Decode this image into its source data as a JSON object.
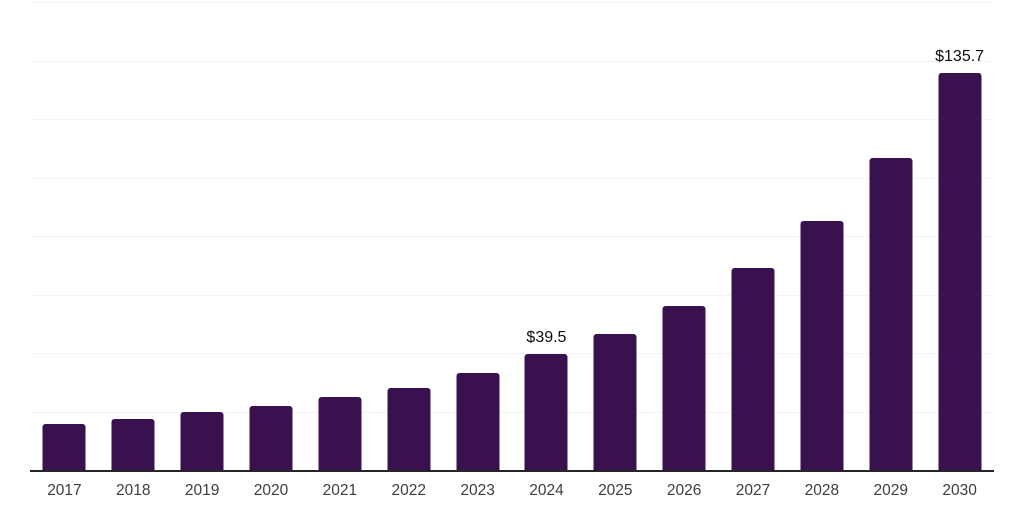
{
  "chart_data": {
    "type": "bar",
    "title": "",
    "xlabel": "",
    "ylabel": "",
    "categories": [
      "2017",
      "2018",
      "2019",
      "2020",
      "2021",
      "2022",
      "2023",
      "2024",
      "2025",
      "2026",
      "2027",
      "2028",
      "2029",
      "2030"
    ],
    "values": [
      15.9,
      17.5,
      19.8,
      21.9,
      24.9,
      28.2,
      33.1,
      39.5,
      46.6,
      56.2,
      69.0,
      85.3,
      106.7,
      135.7
    ],
    "annotations": [
      {
        "category": "2024",
        "text": "$39.5"
      },
      {
        "category": "2030",
        "text": "$135.7"
      }
    ],
    "ylim": [
      0,
      160
    ],
    "gridline_count": 8,
    "grid_on": true,
    "legend_position": "none",
    "colors": {
      "bar": "#38114E",
      "gridline": "#f2f2f2",
      "axis_line": "#262626",
      "value_label": "#0d0d0d",
      "tick_label": "#3d3d3d",
      "background": "#ffffff"
    }
  }
}
